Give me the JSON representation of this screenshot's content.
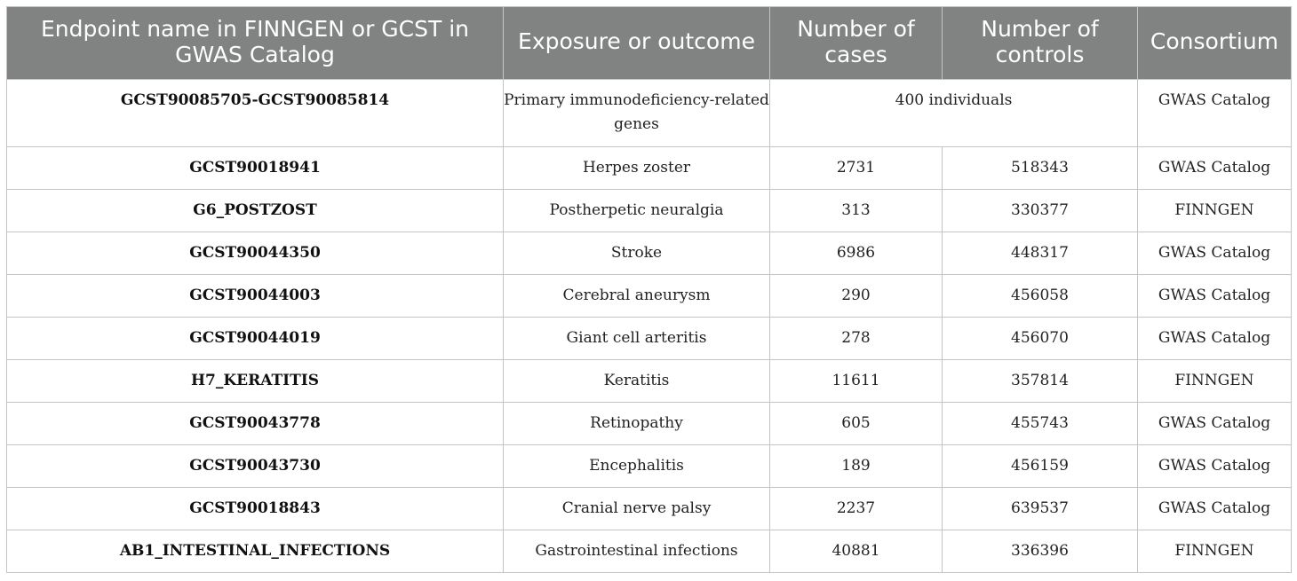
{
  "table": {
    "headers": {
      "endpoint": "Endpoint name in FINNGEN or GCST in GWAS Catalog",
      "exposure": "Exposure or outcome",
      "cases": "Number of cases",
      "controls": "Number of controls",
      "consortium": "Consortium"
    },
    "first_row": {
      "endpoint": "GCST90085705-GCST90085814",
      "exposure": "Primary immunodeficiency-related genes",
      "sample": "400 individuals",
      "consortium": "GWAS Catalog"
    },
    "rows": [
      {
        "endpoint": "GCST90018941",
        "exposure": "Herpes zoster",
        "cases": "2731",
        "controls": "518343",
        "consortium": "GWAS Catalog"
      },
      {
        "endpoint": "G6_POSTZOST",
        "exposure": "Postherpetic neuralgia",
        "cases": "313",
        "controls": "330377",
        "consortium": "FINNGEN"
      },
      {
        "endpoint": "GCST90044350",
        "exposure": "Stroke",
        "cases": "6986",
        "controls": "448317",
        "consortium": "GWAS Catalog"
      },
      {
        "endpoint": "GCST90044003",
        "exposure": "Cerebral aneurysm",
        "cases": "290",
        "controls": "456058",
        "consortium": "GWAS Catalog"
      },
      {
        "endpoint": "GCST90044019",
        "exposure": "Giant cell arteritis",
        "cases": "278",
        "controls": "456070",
        "consortium": "GWAS Catalog"
      },
      {
        "endpoint": "H7_KERATITIS",
        "exposure": "Keratitis",
        "cases": "11611",
        "controls": "357814",
        "consortium": "FINNGEN"
      },
      {
        "endpoint": "GCST90043778",
        "exposure": "Retinopathy",
        "cases": "605",
        "controls": "455743",
        "consortium": "GWAS Catalog"
      },
      {
        "endpoint": "GCST90043730",
        "exposure": "Encephalitis",
        "cases": "189",
        "controls": "456159",
        "consortium": "GWAS Catalog"
      },
      {
        "endpoint": "GCST90018843",
        "exposure": "Cranial nerve palsy",
        "cases": "2237",
        "controls": "639537",
        "consortium": "GWAS Catalog"
      },
      {
        "endpoint": "AB1_INTESTINAL_INFECTIONS",
        "exposure": "Gastrointestinal infections",
        "cases": "40881",
        "controls": "336396",
        "consortium": "FINNGEN"
      }
    ],
    "colors": {
      "header_bg": "#808381",
      "header_text": "#ffffff",
      "border": "#c4c4c4"
    }
  }
}
